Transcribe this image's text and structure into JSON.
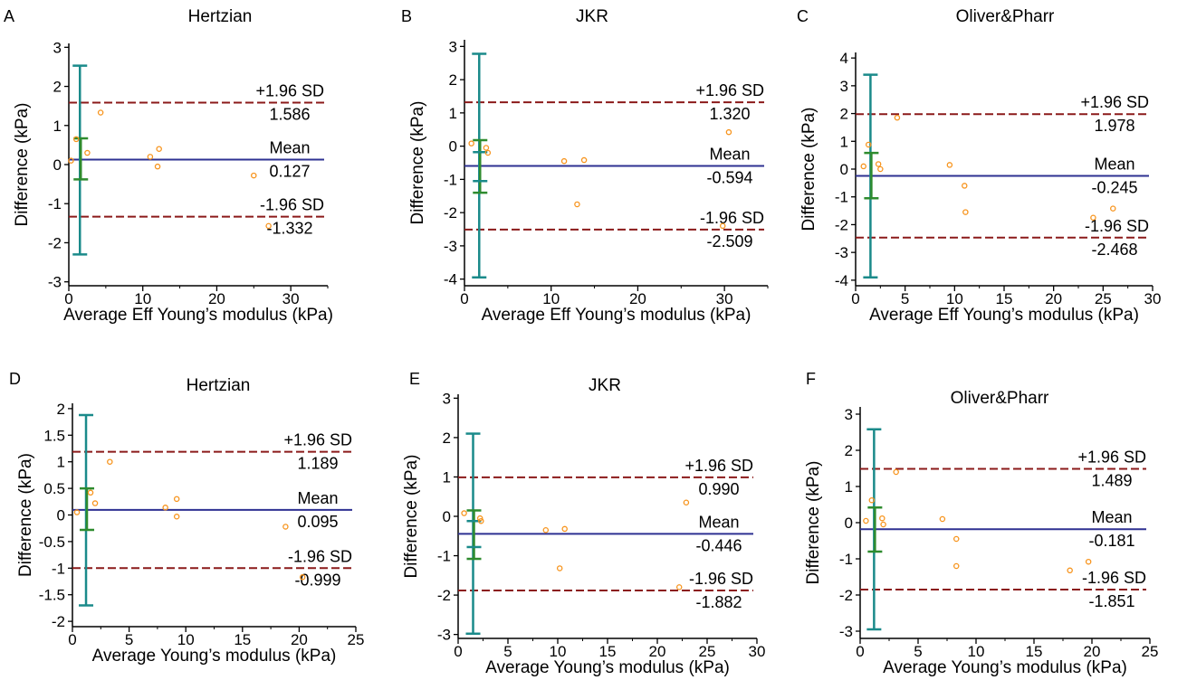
{
  "figure": {
    "colors": {
      "axis": "#000000",
      "mean_line": "#2e3192",
      "limit_line": "#8b1a1a",
      "points": "#f7941d",
      "error_bar_outer": "#1a8a8a",
      "error_bar_inner": "#2e8b2e"
    }
  },
  "chart_data": [
    {
      "panel": "A",
      "type": "scatter",
      "title": "Hertzian",
      "xlabel": "Average Eff Young’s modulus (kPa)",
      "ylabel": "Difference (kPa)",
      "xlim": [
        0,
        35
      ],
      "ylim": [
        -3.1,
        3.1
      ],
      "xticks": [
        0,
        10,
        20,
        30
      ],
      "xtick_labels": [
        "0",
        "10",
        "20",
        "30"
      ],
      "yticks": [
        3,
        2,
        1,
        0,
        -1,
        -2,
        -3
      ],
      "ytick_labels": [
        "3",
        "2",
        "1",
        "0",
        "-1",
        "-2",
        "-3"
      ],
      "points": [
        [
          0.3,
          0.1
        ],
        [
          1.0,
          0.65
        ],
        [
          2.5,
          0.3
        ],
        [
          4.3,
          1.33
        ],
        [
          11.0,
          0.2
        ],
        [
          12.2,
          0.4
        ],
        [
          12.0,
          -0.05
        ],
        [
          25.0,
          -0.28
        ],
        [
          27.0,
          -1.57
        ]
      ],
      "mean": 0.127,
      "upper": 1.586,
      "lower": -1.332,
      "upper_label": "+1.96 SD",
      "upper_value": "1.586",
      "mean_label": "Mean",
      "mean_value": "0.127",
      "lower_label": "-1.96 SD",
      "lower_value": "-1.332",
      "error_bar": {
        "x": 1.5,
        "outer": [
          -2.3,
          2.53
        ],
        "inner": [
          -0.38,
          0.67
        ]
      }
    },
    {
      "panel": "B",
      "type": "scatter",
      "title": "JKR",
      "xlabel": "Average Eff Young’s modulus (kPa)",
      "ylabel": "Difference (kPa)",
      "xlim": [
        0,
        35
      ],
      "ylim": [
        -4.2,
        3.2
      ],
      "xticks": [
        0,
        10,
        20,
        30
      ],
      "xtick_labels": [
        "0",
        "10",
        "20",
        "30"
      ],
      "yticks": [
        3,
        2,
        1,
        0,
        -1,
        -2,
        -3,
        -4
      ],
      "ytick_labels": [
        "3",
        "2",
        "1",
        "0",
        "-1",
        "-2",
        "-3",
        "-4"
      ],
      "points": [
        [
          0.8,
          0.08
        ],
        [
          2.5,
          -0.05
        ],
        [
          2.7,
          -0.2
        ],
        [
          11.5,
          -0.45
        ],
        [
          13.8,
          -0.42
        ],
        [
          13.0,
          -1.75
        ],
        [
          30.5,
          0.42
        ],
        [
          29.8,
          -2.4
        ]
      ],
      "mean": -0.594,
      "upper": 1.32,
      "lower": -2.509,
      "upper_label": "+1.96 SD",
      "upper_value": "1.320",
      "mean_label": "Mean",
      "mean_value": "-0.594",
      "lower_label": "-1.96 SD",
      "lower_value": "-2.509",
      "error_bar": {
        "x": 1.7,
        "outer": [
          -3.95,
          2.78
        ],
        "inner": [
          -1.4,
          0.18
        ],
        "inner2": [
          -1.05,
          -0.18
        ]
      }
    },
    {
      "panel": "C",
      "type": "scatter",
      "title": "Oliver&Pharr",
      "xlabel": "Average Eff Young’s modulus (kPa)",
      "ylabel": "Difference (kPa)",
      "xlim": [
        0,
        30
      ],
      "ylim": [
        -4.2,
        4.2
      ],
      "xticks": [
        0,
        5,
        10,
        15,
        20,
        25,
        30
      ],
      "xtick_labels": [
        "0",
        "5",
        "10",
        "15",
        "20",
        "25",
        "30"
      ],
      "yticks": [
        4,
        3,
        2,
        1,
        0,
        -1,
        -2,
        -3,
        -4
      ],
      "ytick_labels": [
        "4",
        "3",
        "2",
        "1",
        "0",
        "-1",
        "-2",
        "-3",
        "-4"
      ],
      "points": [
        [
          0.8,
          0.1
        ],
        [
          1.3,
          0.88
        ],
        [
          2.3,
          0.18
        ],
        [
          2.5,
          0.0
        ],
        [
          4.2,
          1.85
        ],
        [
          9.5,
          0.15
        ],
        [
          11.0,
          -0.6
        ],
        [
          11.1,
          -1.55
        ],
        [
          24.0,
          -1.75
        ],
        [
          26.0,
          -1.42
        ]
      ],
      "mean": -0.245,
      "upper": 1.978,
      "lower": -2.468,
      "upper_label": "+1.96 SD",
      "upper_value": "1.978",
      "mean_label": "Mean",
      "mean_value": "-0.245",
      "lower_label": "-1.96 SD",
      "lower_value": "-2.468",
      "error_bar": {
        "x": 1.5,
        "outer": [
          -3.9,
          3.4
        ],
        "inner": [
          -1.05,
          0.58
        ]
      }
    },
    {
      "panel": "D",
      "type": "scatter",
      "title": "Hertzian",
      "xlabel": "Average Young’s modulus (kPa)",
      "ylabel": "Difference (kPa)",
      "xlim": [
        0,
        25
      ],
      "ylim": [
        -2.1,
        2.1
      ],
      "xticks": [
        0,
        5,
        10,
        15,
        20,
        25
      ],
      "xtick_labels": [
        "0",
        "5",
        "10",
        "15",
        "20",
        "25"
      ],
      "yticks": [
        2,
        1.5,
        1,
        0.5,
        0,
        -0.5,
        -1,
        -1.5,
        -2
      ],
      "ytick_labels": [
        "2",
        "1.5",
        "1",
        "0.5",
        "0",
        "-0.5",
        "-1",
        "-1.5",
        "-2"
      ],
      "points": [
        [
          0.4,
          0.05
        ],
        [
          1.6,
          0.42
        ],
        [
          2.0,
          0.22
        ],
        [
          3.3,
          1.0
        ],
        [
          8.2,
          0.14
        ],
        [
          9.2,
          0.3
        ],
        [
          9.2,
          -0.03
        ],
        [
          18.8,
          -0.22
        ],
        [
          20.3,
          -1.17
        ]
      ],
      "mean": 0.095,
      "upper": 1.189,
      "lower": -0.999,
      "upper_label": "+1.96 SD",
      "upper_value": "1.189",
      "mean_label": "Mean",
      "mean_value": "0.095",
      "lower_label": "-1.96 SD",
      "lower_value": "-0.999",
      "error_bar": {
        "x": 1.2,
        "outer": [
          -1.7,
          1.88
        ],
        "inner": [
          -0.28,
          0.5
        ]
      }
    },
    {
      "panel": "E",
      "type": "scatter",
      "title": "JKR",
      "xlabel": "Average Young’s modulus (kPa)",
      "ylabel": "Difference (kPa)",
      "xlim": [
        0,
        30
      ],
      "ylim": [
        -3.1,
        3.1
      ],
      "xticks": [
        0,
        5,
        10,
        15,
        20,
        25,
        30
      ],
      "xtick_labels": [
        "0",
        "5",
        "10",
        "15",
        "20",
        "25",
        "30"
      ],
      "yticks": [
        3,
        2,
        1,
        0,
        -1,
        -2,
        -3
      ],
      "ytick_labels": [
        "3",
        "2",
        "1",
        "0",
        "-1",
        "-2",
        "-3"
      ],
      "points": [
        [
          0.6,
          0.08
        ],
        [
          2.2,
          -0.05
        ],
        [
          2.3,
          -0.12
        ],
        [
          8.8,
          -0.35
        ],
        [
          10.7,
          -0.32
        ],
        [
          10.2,
          -1.32
        ],
        [
          22.9,
          0.35
        ],
        [
          22.2,
          -1.8
        ]
      ],
      "mean": -0.446,
      "upper": 0.99,
      "lower": -1.882,
      "upper_label": "+1.96 SD",
      "upper_value": "0.990",
      "mean_label": "Mean",
      "mean_value": "-0.446",
      "lower_label": "-1.96 SD",
      "lower_value": "-1.882",
      "error_bar": {
        "x": 1.5,
        "outer": [
          -2.98,
          2.1
        ],
        "inner": [
          -1.08,
          0.15
        ],
        "inner2": [
          -0.78,
          -0.12
        ]
      }
    },
    {
      "panel": "F",
      "type": "scatter",
      "title": "Oliver&Pharr",
      "xlabel": "Average Young’s modulus (kPa)",
      "ylabel": "Difference (kPa)",
      "xlim": [
        0,
        25
      ],
      "ylim": [
        -3.2,
        3.2
      ],
      "xticks": [
        0,
        5,
        10,
        15,
        20,
        25
      ],
      "xtick_labels": [
        "0",
        "5",
        "10",
        "15",
        "20",
        "25"
      ],
      "yticks": [
        3,
        2,
        1,
        0,
        -1,
        -2,
        -3
      ],
      "ytick_labels": [
        "3",
        "2",
        "1",
        "0",
        "-1",
        "-2",
        "-3"
      ],
      "points": [
        [
          0.5,
          0.05
        ],
        [
          1.0,
          0.62
        ],
        [
          1.9,
          0.12
        ],
        [
          2.0,
          -0.05
        ],
        [
          3.1,
          1.4
        ],
        [
          7.1,
          0.1
        ],
        [
          8.3,
          -0.45
        ],
        [
          8.3,
          -1.2
        ],
        [
          18.1,
          -1.32
        ],
        [
          19.7,
          -1.08
        ]
      ],
      "mean": -0.181,
      "upper": 1.489,
      "lower": -1.851,
      "upper_label": "+1.96 SD",
      "upper_value": "1.489",
      "mean_label": "Mean",
      "mean_value": "-0.181",
      "lower_label": "-1.96 SD",
      "lower_value": "-1.851",
      "error_bar": {
        "x": 1.2,
        "outer": [
          -2.95,
          2.58
        ],
        "inner": [
          -0.8,
          0.42
        ]
      }
    }
  ]
}
